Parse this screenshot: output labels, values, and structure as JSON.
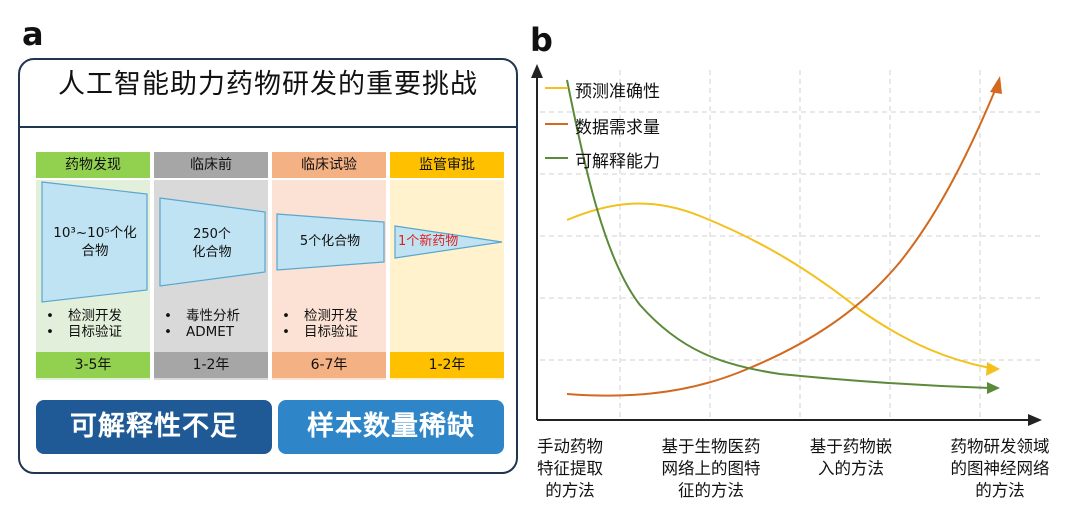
{
  "panel_a": {
    "letter": "a",
    "title": "人工智能助力药物研发的重要挑战",
    "stages": [
      {
        "name": "药物发现",
        "compounds_line1": "10³~10⁵个化",
        "compounds_line2": "合物",
        "tasks": [
          "检测开发",
          "目标验证"
        ],
        "duration": "3-5年",
        "header_color": "#92d050",
        "body_color": "#e2efda",
        "footer_color": "#92d050"
      },
      {
        "name": "临床前",
        "compounds_line1": "250个",
        "compounds_line2": "化合物",
        "tasks": [
          "毒性分析",
          "ADMET"
        ],
        "duration": "1-2年",
        "header_color": "#a6a6a6",
        "body_color": "#d9d9d9",
        "footer_color": "#a6a6a6"
      },
      {
        "name": "临床试验",
        "compounds_line1": "5个化合物",
        "compounds_line2": "",
        "tasks": [
          "检测开发",
          "目标验证"
        ],
        "duration": "6-7年",
        "header_color": "#f4b183",
        "body_color": "#fbe2d5",
        "footer_color": "#f4b183"
      },
      {
        "name": "监管审批",
        "compounds_line1": "1个新药物",
        "compounds_line2": "",
        "tasks": [],
        "duration": "1-2年",
        "header_color": "#ffc000",
        "body_color": "#fff2cc",
        "footer_color": "#ffc000"
      }
    ],
    "challenges": [
      {
        "label": "可解释性不足",
        "color": "#1f5a96"
      },
      {
        "label": "样本数量稀缺",
        "color": "#2e86c8"
      }
    ],
    "funnel_color": "#bfe3f2",
    "funnel_edge": "#5aa6cf",
    "highlight_text_color": "#e02020"
  },
  "panel_b": {
    "letter": "b",
    "legend": [
      {
        "label": "预测准确性",
        "color": "#f2c11c"
      },
      {
        "label": "数据需求量",
        "color": "#d2691e"
      },
      {
        "label": "可解释能力",
        "color": "#5b8a3a"
      }
    ],
    "x_categories": [
      [
        "手动药物",
        "特征提取",
        "的方法"
      ],
      [
        "基于生物医药",
        "网络上的图特",
        "征的方法"
      ],
      [
        "基于药物嵌",
        "入的方法"
      ],
      [
        "药物研发领域",
        "的图神经网络",
        "的方法"
      ]
    ]
  }
}
